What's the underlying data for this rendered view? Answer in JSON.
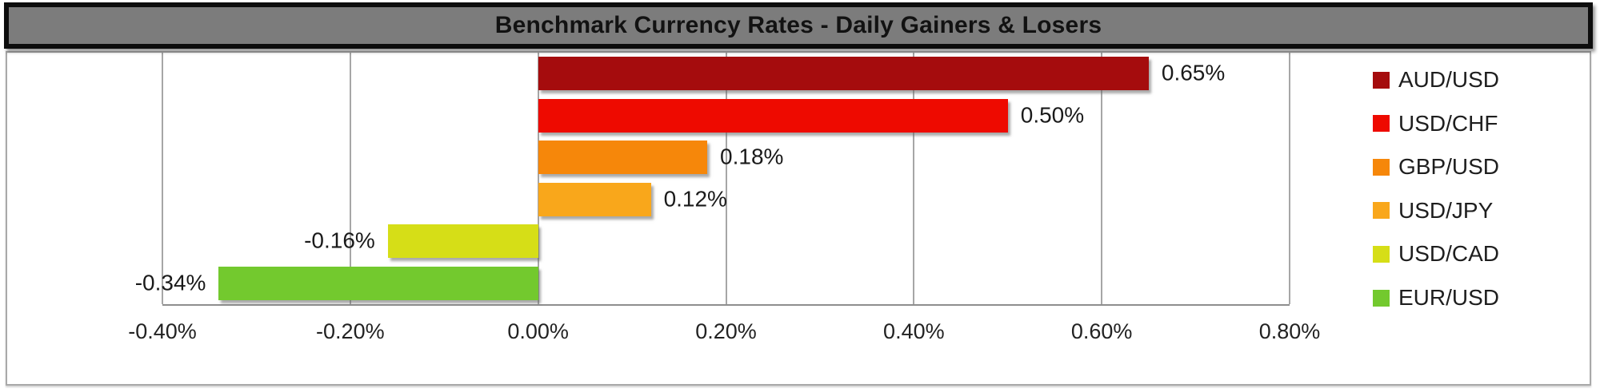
{
  "title": {
    "text": "Benchmark Currency Rates - Daily Gainers & Losers"
  },
  "chart_data": {
    "type": "bar",
    "orientation": "horizontal",
    "title": "Benchmark Currency Rates - Daily Gainers & Losers",
    "categories": [
      "AUD/USD",
      "USD/CHF",
      "GBP/USD",
      "USD/JPY",
      "USD/CAD",
      "EUR/USD"
    ],
    "values": [
      0.65,
      0.5,
      0.18,
      0.12,
      -0.16,
      -0.34
    ],
    "data_labels": [
      "0.65%",
      "0.50%",
      "0.18%",
      "0.12%",
      "-0.16%",
      "-0.34%"
    ],
    "xlim": [
      -0.4,
      0.8
    ],
    "x_ticks": [
      {
        "value": -0.4,
        "label": "-0.40%"
      },
      {
        "value": -0.2,
        "label": "-0.20%"
      },
      {
        "value": 0.0,
        "label": "0.00%"
      },
      {
        "value": 0.2,
        "label": "0.20%"
      },
      {
        "value": 0.4,
        "label": "0.40%"
      },
      {
        "value": 0.6,
        "label": "0.60%"
      },
      {
        "value": 0.8,
        "label": "0.80%"
      }
    ],
    "grid": "vertical",
    "legend_position": "right",
    "legend": [
      {
        "label": "AUD/USD",
        "color": "#a50c0d"
      },
      {
        "label": "USD/CHF",
        "color": "#ee0a00"
      },
      {
        "label": "GBP/USD",
        "color": "#f6870a"
      },
      {
        "label": "USD/JPY",
        "color": "#f9a71b"
      },
      {
        "label": "USD/CAD",
        "color": "#d6de17"
      },
      {
        "label": "EUR/USD",
        "color": "#73c92e"
      }
    ]
  },
  "style": {
    "title_bg": "#7c7c7c",
    "title_border": "#0d0d0d",
    "title_text_color": "#121212",
    "frame_border": "#a9a9a9",
    "grid_color": "#a6a6a6",
    "axis_line_color": "#8e8e8e",
    "label_color": "#1a1a1a",
    "background": "#ffffff"
  }
}
